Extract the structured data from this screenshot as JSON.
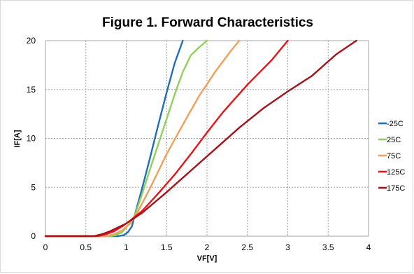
{
  "chart_data": {
    "type": "line",
    "title": "Figure 1. Forward Characteristics",
    "xlabel": "VF[V]",
    "ylabel": "IF[A]",
    "xlim": [
      0,
      4
    ],
    "ylim": [
      0,
      20
    ],
    "xticks": [
      "0",
      "0.5",
      "1",
      "1.5",
      "2",
      "2.5",
      "3",
      "3.5",
      "4"
    ],
    "yticks": [
      "0",
      "5",
      "10",
      "15",
      "20"
    ],
    "grid": true,
    "legend_position": "right",
    "series": [
      {
        "name": "-25C",
        "color": "#1f6fb4",
        "points": [
          [
            0,
            0
          ],
          [
            0.9,
            0
          ],
          [
            0.97,
            0.1
          ],
          [
            1.02,
            0.4
          ],
          [
            1.07,
            1.0
          ],
          [
            1.1,
            2.0
          ],
          [
            1.2,
            5.0
          ],
          [
            1.3,
            8.2
          ],
          [
            1.4,
            11.5
          ],
          [
            1.5,
            14.7
          ],
          [
            1.6,
            17.7
          ],
          [
            1.7,
            20.0
          ]
        ]
      },
      {
        "name": "25C",
        "color": "#8fd15a",
        "points": [
          [
            0,
            0
          ],
          [
            0.8,
            0
          ],
          [
            0.87,
            0.1
          ],
          [
            0.95,
            0.4
          ],
          [
            1.03,
            1.2
          ],
          [
            1.1,
            2.0
          ],
          [
            1.2,
            4.4
          ],
          [
            1.3,
            7.0
          ],
          [
            1.4,
            9.5
          ],
          [
            1.5,
            12.0
          ],
          [
            1.6,
            14.5
          ],
          [
            1.7,
            16.8
          ],
          [
            1.8,
            18.5
          ],
          [
            1.9,
            19.3
          ],
          [
            2.0,
            20.0
          ]
        ]
      },
      {
        "name": "75C",
        "color": "#f0a05a",
        "points": [
          [
            0,
            0
          ],
          [
            0.75,
            0
          ],
          [
            0.85,
            0.2
          ],
          [
            0.95,
            0.6
          ],
          [
            1.05,
            1.3
          ],
          [
            1.15,
            2.6
          ],
          [
            1.3,
            5.0
          ],
          [
            1.5,
            8.4
          ],
          [
            1.7,
            11.4
          ],
          [
            1.9,
            14.3
          ],
          [
            2.1,
            16.8
          ],
          [
            2.3,
            19.0
          ],
          [
            2.4,
            20.0
          ]
        ]
      },
      {
        "name": "125C",
        "color": "#e8141b",
        "points": [
          [
            0,
            0
          ],
          [
            0.65,
            0
          ],
          [
            0.75,
            0.2
          ],
          [
            0.85,
            0.5
          ],
          [
            0.95,
            1.0
          ],
          [
            1.05,
            1.6
          ],
          [
            1.2,
            2.6
          ],
          [
            1.4,
            4.4
          ],
          [
            1.6,
            6.3
          ],
          [
            1.8,
            8.4
          ],
          [
            2.0,
            10.6
          ],
          [
            2.2,
            12.7
          ],
          [
            2.5,
            15.5
          ],
          [
            2.8,
            18.0
          ],
          [
            3.0,
            20.0
          ]
        ]
      },
      {
        "name": "175C",
        "color": "#a3131a",
        "points": [
          [
            0,
            0
          ],
          [
            0.6,
            0
          ],
          [
            0.7,
            0.2
          ],
          [
            0.8,
            0.5
          ],
          [
            0.9,
            0.9
          ],
          [
            1.0,
            1.3
          ],
          [
            1.2,
            2.4
          ],
          [
            1.5,
            4.5
          ],
          [
            1.8,
            6.7
          ],
          [
            2.1,
            8.9
          ],
          [
            2.4,
            11.1
          ],
          [
            2.7,
            13.1
          ],
          [
            3.0,
            14.8
          ],
          [
            3.3,
            16.4
          ],
          [
            3.6,
            18.6
          ],
          [
            3.85,
            20.0
          ]
        ]
      }
    ]
  }
}
